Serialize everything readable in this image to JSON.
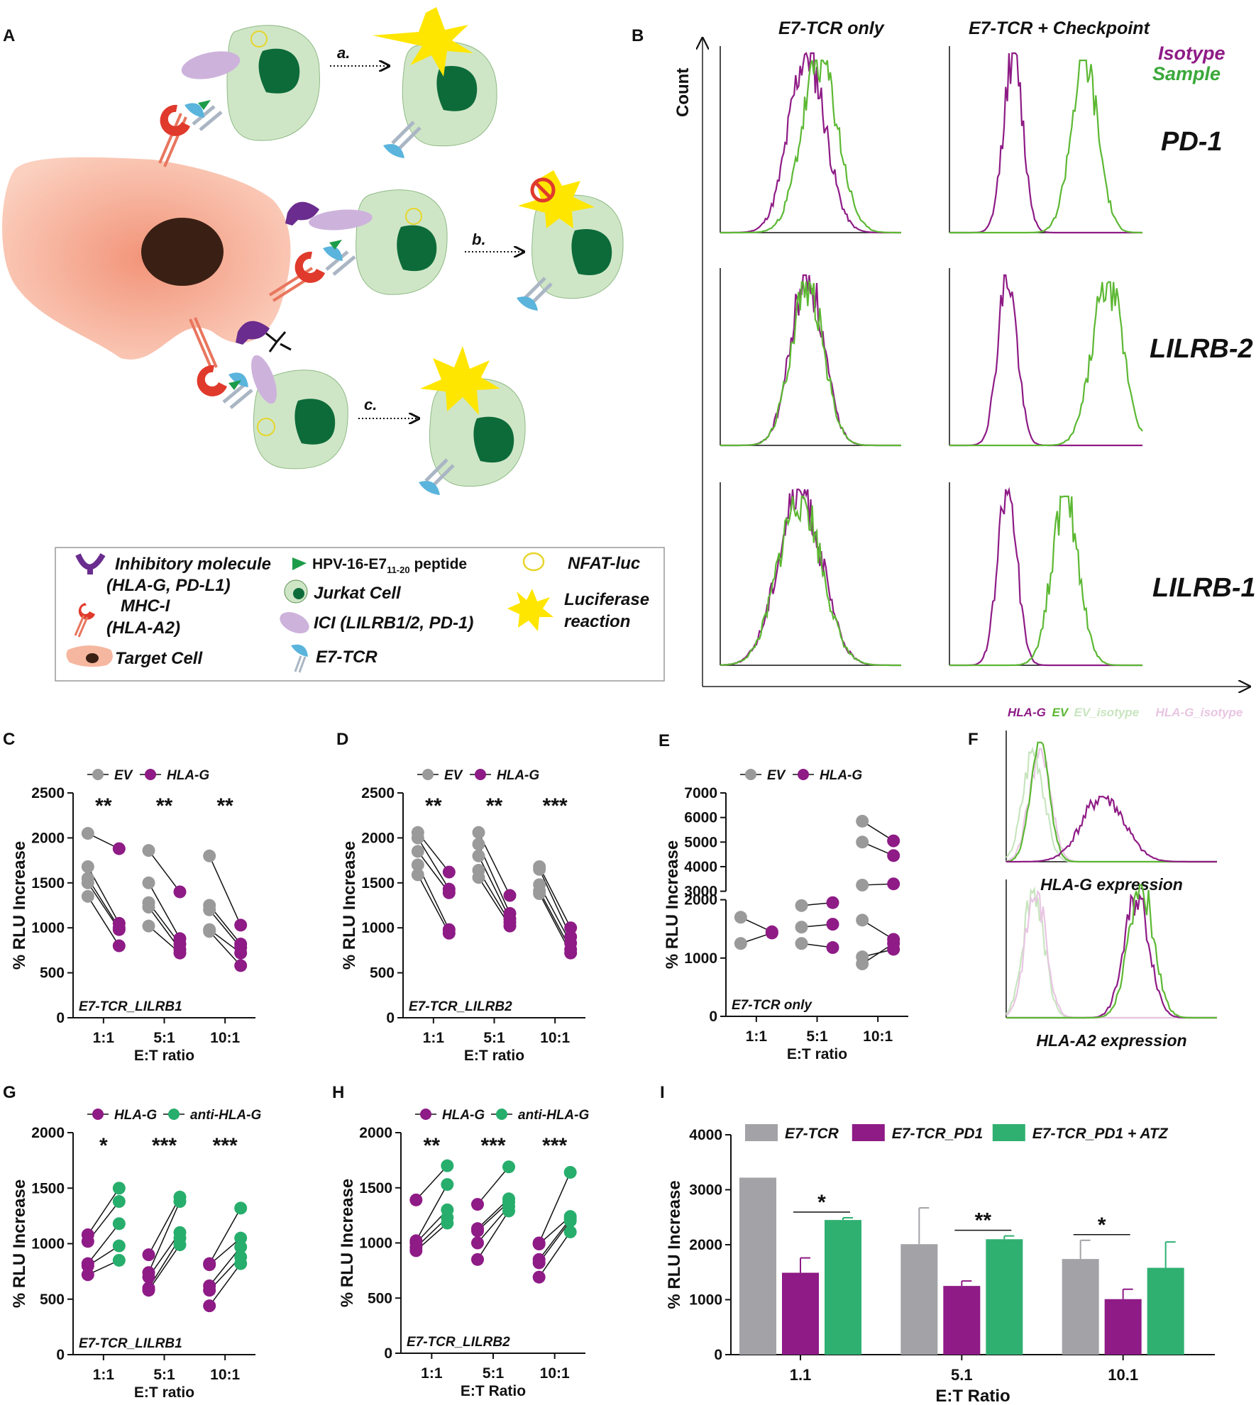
{
  "panel_labels": {
    "A": "A",
    "B": "B",
    "C": "C",
    "D": "D",
    "E": "E",
    "F": "F",
    "G": "G",
    "H": "H",
    "I": "I"
  },
  "schematic": {
    "arrows": {
      "a": "a.",
      "b": "b.",
      "c": "c."
    },
    "legend": {
      "inhibitory_1": "Inhibitory molecule",
      "inhibitory_2": "(HLA-G, PD-L1)",
      "mhc_1": "MHC-I",
      "mhc_2": "(HLA-A2)",
      "target": "Target Cell",
      "peptide_prefix": "HPV-16-E7",
      "peptide_sub": "11-20",
      "peptide_suffix": " peptide",
      "jurkat": "Jurkat Cell",
      "ici": "ICI (LILRB1/2, PD-1)",
      "tcr": "E7-TCR",
      "nfat": "NFAT-luc",
      "luc_1": "Luciferase",
      "luc_2": "reaction"
    },
    "colors": {
      "cell": "#cfe6c6",
      "nucleus": "#0d6b3a",
      "target": "#f6b7a0",
      "mhc": "#e03a2c",
      "inhib": "#6a2c8e",
      "ici": "#cdb3dc",
      "tcr": "#5ab4dc",
      "star": "#ffe600"
    }
  },
  "flow": {
    "col_titles": [
      "E7-TCR only",
      "E7-TCR + Checkpoint"
    ],
    "legend": [
      "Isotype",
      "Sample"
    ],
    "ylabel": "Count",
    "rows": [
      "PD-1",
      "LILRB-2",
      "LILRB-1"
    ],
    "colors": {
      "isotype": "#8e1b86",
      "sample": "#5cb833"
    }
  },
  "chart_data": [
    {
      "panel": "C",
      "type": "scatter",
      "style": "paired-dots",
      "legend": [
        "EV",
        "HLA-G"
      ],
      "series_colors": [
        "#9a9a9a",
        "#8e1b86"
      ],
      "categories": [
        "1:1",
        "5:1",
        "10:1"
      ],
      "ylabel": "% RLU Increase",
      "xlabel": "E:T ratio",
      "annotation": "E7-TCR_LILRB1",
      "ylim": [
        0,
        2500
      ],
      "yticks": [
        0,
        500,
        1000,
        1500,
        2000,
        2500
      ],
      "significance": [
        "**",
        "**",
        "**"
      ],
      "pairs": [
        [
          [
            2050,
            1880
          ],
          [
            1680,
            1050
          ],
          [
            1550,
            1000
          ],
          [
            1500,
            980
          ],
          [
            1350,
            800
          ]
        ],
        [
          [
            1860,
            1400
          ],
          [
            1500,
            880
          ],
          [
            1280,
            820
          ],
          [
            1230,
            760
          ],
          [
            1020,
            720
          ]
        ],
        [
          [
            1800,
            1030
          ],
          [
            1250,
            820
          ],
          [
            1200,
            780
          ],
          [
            980,
            720
          ],
          [
            960,
            580
          ]
        ]
      ]
    },
    {
      "panel": "D",
      "type": "scatter",
      "style": "paired-dots",
      "legend": [
        "EV",
        "HLA-G"
      ],
      "series_colors": [
        "#9a9a9a",
        "#8e1b86"
      ],
      "categories": [
        "1:1",
        "5:1",
        "10:1"
      ],
      "ylabel": "% RLU Increase",
      "xlabel": "E:T ratio",
      "annotation": "E7-TCR_LILRB2",
      "ylim": [
        0,
        2500
      ],
      "yticks": [
        0,
        500,
        1000,
        1500,
        2000,
        2500
      ],
      "significance": [
        "**",
        "**",
        "***"
      ],
      "pairs": [
        [
          [
            2060,
            1620
          ],
          [
            2000,
            1430
          ],
          [
            1850,
            1390
          ],
          [
            1700,
            980
          ],
          [
            1590,
            940
          ]
        ],
        [
          [
            2060,
            1360
          ],
          [
            1930,
            1160
          ],
          [
            1800,
            1100
          ],
          [
            1640,
            1060
          ],
          [
            1560,
            1020
          ]
        ],
        [
          [
            1680,
            1000
          ],
          [
            1650,
            900
          ],
          [
            1480,
            830
          ],
          [
            1410,
            760
          ],
          [
            1380,
            720
          ]
        ]
      ]
    },
    {
      "panel": "E",
      "type": "scatter",
      "style": "paired-dots-broken-axis",
      "legend": [
        "EV",
        "HLA-G"
      ],
      "series_colors": [
        "#9a9a9a",
        "#8e1b86"
      ],
      "categories": [
        "1:1",
        "5:1",
        "10:1"
      ],
      "ylabel": "% RLU Increase",
      "xlabel": "E:T ratio",
      "annotation": "E7-TCR only",
      "ylim": [
        0,
        7000
      ],
      "axis_break": [
        2000,
        3000
      ],
      "yticks": [
        0,
        1000,
        2000,
        3000,
        4000,
        5000,
        6000,
        7000
      ],
      "pairs": [
        [
          [
            1700,
            1450
          ],
          [
            1250,
            1430
          ]
        ],
        [
          [
            1900,
            1950
          ],
          [
            1530,
            1580
          ],
          [
            1250,
            1180
          ]
        ],
        [
          [
            5850,
            5050
          ],
          [
            5000,
            4450
          ],
          [
            3250,
            3300
          ],
          [
            1650,
            1320
          ],
          [
            1020,
            1150
          ],
          [
            900,
            1250
          ]
        ]
      ]
    },
    {
      "panel": "F",
      "type": "area",
      "style": "flow-histogram",
      "legend": [
        "HLA-G",
        "EV",
        "EV_isotype",
        "HLA-G_isotype"
      ],
      "series_colors": [
        "#8e1b86",
        "#5cb833",
        "#c8e5bf",
        "#e8c6e3"
      ],
      "subplots": [
        "HLA-G expression",
        "HLA-A2 expression"
      ]
    },
    {
      "panel": "G",
      "type": "scatter",
      "style": "paired-dots",
      "legend": [
        "HLA-G",
        "anti-HLA-G"
      ],
      "series_colors": [
        "#8e1b86",
        "#27ae6c"
      ],
      "categories": [
        "1:1",
        "5:1",
        "10:1"
      ],
      "ylabel": "% RLU Increase",
      "xlabel": "E:T ratio",
      "annotation": "E7-TCR_LILRB1",
      "ylim": [
        0,
        2000
      ],
      "yticks": [
        0,
        500,
        1000,
        1500,
        2000
      ],
      "significance": [
        "*",
        "***",
        "***"
      ],
      "pairs": [
        [
          [
            1080,
            1500
          ],
          [
            1020,
            1380
          ],
          [
            820,
            1180
          ],
          [
            800,
            980
          ],
          [
            720,
            850
          ]
        ],
        [
          [
            900,
            1420
          ],
          [
            740,
            1380
          ],
          [
            700,
            1100
          ],
          [
            600,
            1050
          ],
          [
            580,
            990
          ]
        ],
        [
          [
            820,
            1320
          ],
          [
            810,
            1050
          ],
          [
            620,
            970
          ],
          [
            580,
            880
          ],
          [
            440,
            820
          ]
        ]
      ]
    },
    {
      "panel": "H",
      "type": "scatter",
      "style": "paired-dots",
      "legend": [
        "HLA-G",
        "anti-HLA-G"
      ],
      "series_colors": [
        "#8e1b86",
        "#27ae6c"
      ],
      "categories": [
        "1:1",
        "5:1",
        "10:1"
      ],
      "ylabel": "% RLU Increase",
      "xlabel": "E:T Ratio",
      "annotation": "E7-TCR_LILRB2",
      "ylim": [
        0,
        2000
      ],
      "yticks": [
        0,
        500,
        1000,
        1500,
        2000
      ],
      "significance": [
        "**",
        "***",
        "***"
      ],
      "pairs": [
        [
          [
            1390,
            1700
          ],
          [
            1020,
            1530
          ],
          [
            1000,
            1300
          ],
          [
            960,
            1230
          ],
          [
            930,
            1180
          ]
        ],
        [
          [
            1350,
            1690
          ],
          [
            1130,
            1400
          ],
          [
            1110,
            1370
          ],
          [
            1000,
            1330
          ],
          [
            850,
            1290
          ]
        ],
        [
          [
            1000,
            1640
          ],
          [
            990,
            1240
          ],
          [
            850,
            1220
          ],
          [
            820,
            1200
          ],
          [
            690,
            1100
          ]
        ]
      ]
    },
    {
      "panel": "I",
      "type": "bar",
      "legend": [
        "E7-TCR",
        "E7-TCR_PD1",
        "E7-TCR_PD1 + ATZ"
      ],
      "series_colors": [
        "#a3a2a7",
        "#8e1b86",
        "#2fb071"
      ],
      "categories": [
        "1.1",
        "5.1",
        "10.1"
      ],
      "ylabel": "% RLU Increase",
      "xlabel": "E:T Ratio",
      "ylim": [
        0,
        4000
      ],
      "yticks": [
        0,
        1000,
        2000,
        3000,
        4000
      ],
      "series": [
        {
          "name": "E7-TCR",
          "values": [
            3220,
            2010,
            1740
          ],
          "errors": [
            0,
            660,
            340
          ]
        },
        {
          "name": "E7-TCR_PD1",
          "values": [
            1490,
            1250,
            1010
          ],
          "errors": [
            270,
            90,
            180
          ]
        },
        {
          "name": "E7-TCR_PD1 + ATZ",
          "values": [
            2450,
            2100,
            1580
          ],
          "errors": [
            40,
            60,
            470
          ]
        }
      ],
      "significance": [
        {
          "label": "*",
          "category": 0,
          "between": [
            1,
            2
          ]
        },
        {
          "label": "**",
          "category": 1,
          "between": [
            1,
            2
          ]
        },
        {
          "label": "*",
          "category": 2,
          "between": [
            0,
            1
          ]
        }
      ]
    }
  ]
}
